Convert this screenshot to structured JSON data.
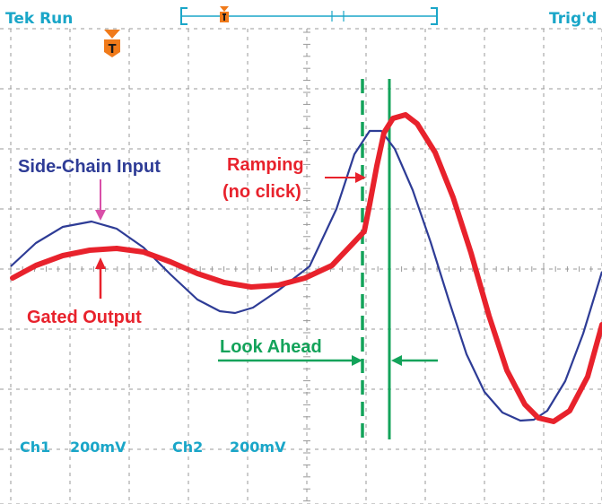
{
  "header": {
    "run_status": "Tek Run",
    "trigger_status": "Trig'd"
  },
  "trigger_marker": {
    "letter": "T"
  },
  "channels": [
    {
      "name": "Ch1",
      "scale": "200mV"
    },
    {
      "name": "Ch2",
      "scale": "200mV"
    }
  ],
  "annotations": {
    "side_chain_input": "Side-Chain Input",
    "ramping_line1": "Ramping",
    "ramping_line2": "(no click)",
    "gated_output": "Gated Output",
    "look_ahead": "Look Ahead"
  },
  "colors": {
    "hud": "#1aa6c8",
    "trigger_marker": "#f07a1a",
    "side_chain_trace": "#2e3c96",
    "gated_trace": "#e8222c",
    "look_ahead": "#13a35a",
    "side_chain_arrow": "#d94fa8",
    "grid": "#999999"
  }
}
